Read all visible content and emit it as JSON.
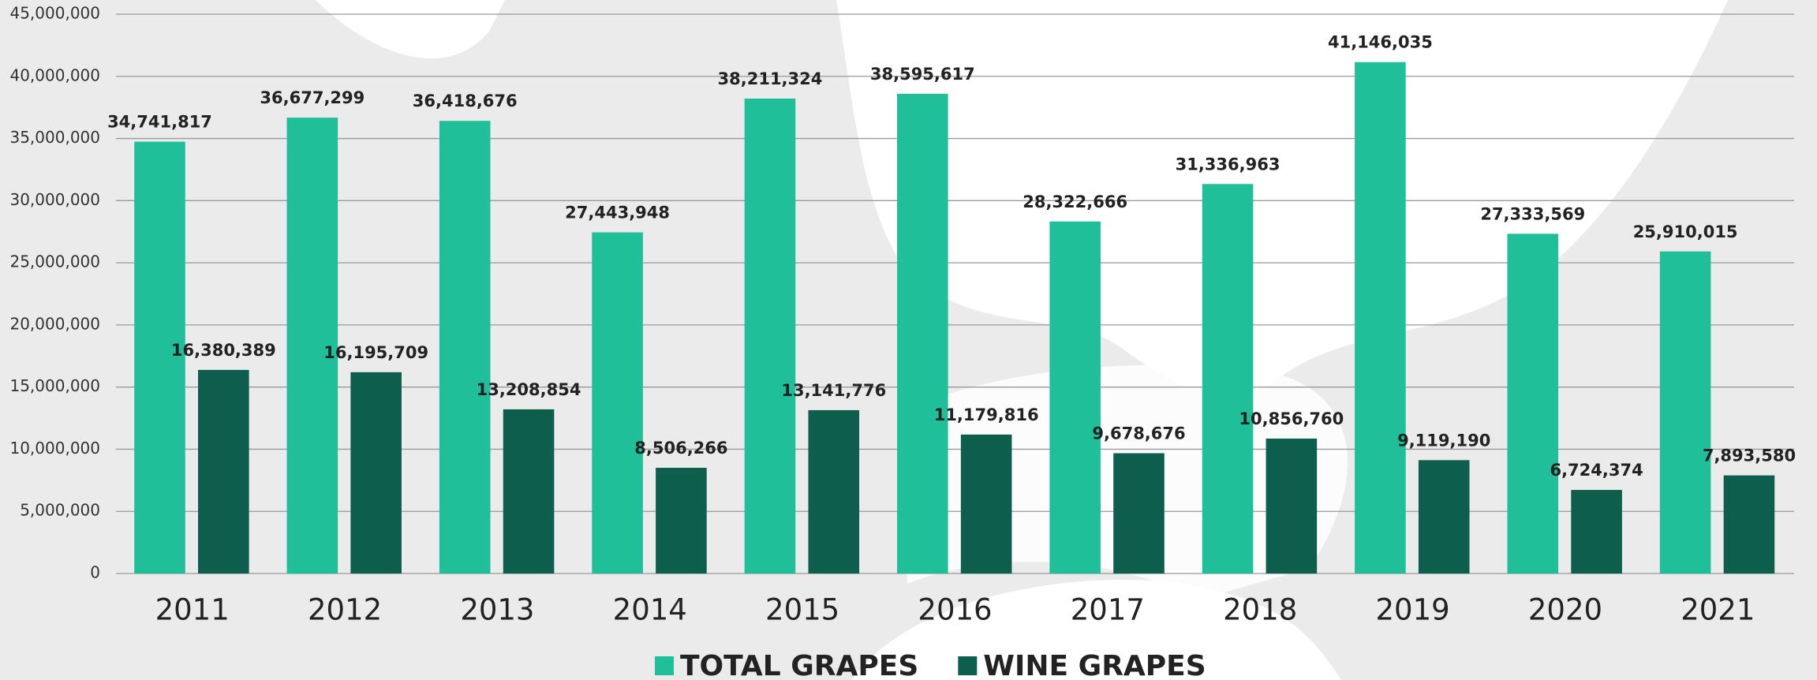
{
  "chart_data": {
    "type": "bar",
    "categories": [
      "2011",
      "2012",
      "2013",
      "2014",
      "2015",
      "2016",
      "2017",
      "2018",
      "2019",
      "2020",
      "2021"
    ],
    "series": [
      {
        "name": "TOTAL GRAPES",
        "color": "#1fbf9a",
        "values": [
          34741817,
          36677299,
          36418676,
          27443948,
          38211324,
          38595617,
          28322666,
          31336963,
          41146035,
          27333569,
          25910015
        ],
        "value_labels": [
          "34,741,817",
          "36,677,299",
          "36,418,676",
          "27,443,948",
          "38,211,324",
          "38,595,617",
          "28,322,666",
          "31,336,963",
          "41,146,035",
          "27,333,569",
          "25,910,015"
        ]
      },
      {
        "name": "WINE GRAPES",
        "color": "#0e5e4e",
        "values": [
          16380389,
          16195709,
          13208854,
          8506266,
          13141776,
          11179816,
          9678676,
          10856760,
          9119190,
          6724374,
          7893580
        ],
        "value_labels": [
          "16,380,389",
          "16,195,709",
          "13,208,854",
          "8,506,266",
          "13,141,776",
          "11,179,816",
          "9,678,676",
          "10,856,760",
          "9,119,190",
          "6,724,374",
          "7,893,580"
        ]
      }
    ],
    "ylim": [
      0,
      45000000
    ],
    "yticks": [
      0,
      {
        "value": 5000000,
        "label": "5,000,000"
      },
      {
        "value": 10000000,
        "label": "10,000,000"
      },
      {
        "value": 15000000,
        "label": "15,000,000"
      },
      {
        "value": 20000000,
        "label": "20,000,000"
      },
      {
        "value": 25000000,
        "label": "25,000,000"
      },
      {
        "value": 30000000,
        "label": "30,000,000"
      },
      {
        "value": 35000000,
        "label": "35,000,000"
      },
      {
        "value": 40000000,
        "label": "40,000,000"
      },
      {
        "value": 45000000,
        "label": "45,000,000"
      }
    ],
    "grid": true,
    "legend": "bottom"
  }
}
